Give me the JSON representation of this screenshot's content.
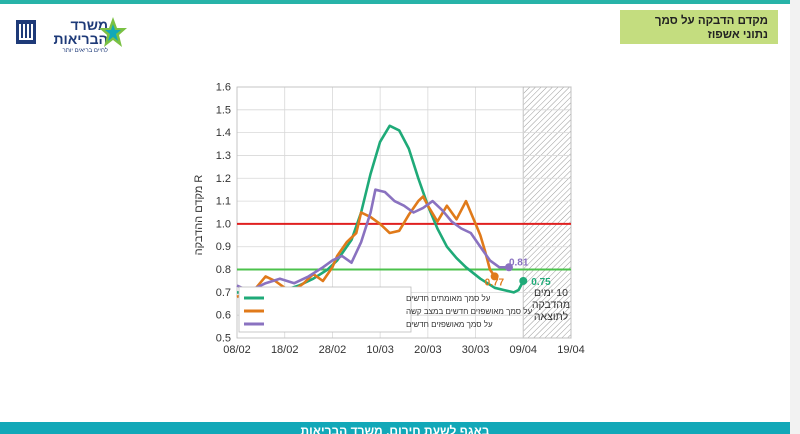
{
  "header": {
    "title": "מקדם הדבקה על סמך נתוני אשפוז",
    "logo_name": "משרד הבריאות",
    "logo_slogan": "לחיים בריאים יותר"
  },
  "footer": {
    "text": "באגף לשעת חירום, משרד הבריאות"
  },
  "colors": {
    "accent": "#12a8b8",
    "title_bg": "#c4dd7f",
    "confirmed": "#1faa78",
    "severe": "#e07a1a",
    "hospitalized": "#8a72c0",
    "threshold_red": "#e02020",
    "threshold_green": "#4cc24c"
  },
  "chart_data": {
    "type": "line",
    "ylabel": "מקדם ההדבקה R",
    "ylim": [
      0.5,
      1.6
    ],
    "yticks": [
      "0.5",
      "0.6",
      "0.7",
      "0.8",
      "0.9",
      "1.0",
      "1.1",
      "1.2",
      "1.3",
      "1.4",
      "1.5",
      "1.6"
    ],
    "xlim": [
      "2021-02-08",
      "2021-04-19"
    ],
    "xticks": [
      {
        "date": "2021-02-08",
        "label": "08/02"
      },
      {
        "date": "2021-02-18",
        "label": "18/02"
      },
      {
        "date": "2021-02-28",
        "label": "28/02"
      },
      {
        "date": "2021-03-10",
        "label": "10/03"
      },
      {
        "date": "2021-03-20",
        "label": "20/03"
      },
      {
        "date": "2021-03-30",
        "label": "30/03"
      },
      {
        "date": "2021-04-09",
        "label": "09/04"
      },
      {
        "date": "2021-04-19",
        "label": "19/04"
      }
    ],
    "grid": true,
    "hatched_region": {
      "from": "2021-04-09",
      "to": "2021-04-19"
    },
    "hlines": [
      {
        "y": 1.0,
        "color": "#e02020"
      },
      {
        "y": 0.8,
        "color": "#4cc24c"
      }
    ],
    "legend_position": "bottom-left",
    "series": [
      {
        "name": "על סמך מאומתים חדשים",
        "color": "#1faa78",
        "end_label": "0.75",
        "points": [
          [
            "2021-02-08",
            0.7
          ],
          [
            "2021-02-11",
            0.7
          ],
          [
            "2021-02-14",
            0.71
          ],
          [
            "2021-02-18",
            0.71
          ],
          [
            "2021-02-21",
            0.73
          ],
          [
            "2021-02-24",
            0.76
          ],
          [
            "2021-02-27",
            0.8
          ],
          [
            "2021-03-01",
            0.84
          ],
          [
            "2021-03-04",
            0.93
          ],
          [
            "2021-03-06",
            1.05
          ],
          [
            "2021-03-08",
            1.22
          ],
          [
            "2021-03-10",
            1.36
          ],
          [
            "2021-03-12",
            1.43
          ],
          [
            "2021-03-14",
            1.41
          ],
          [
            "2021-03-16",
            1.33
          ],
          [
            "2021-03-18",
            1.2
          ],
          [
            "2021-03-20",
            1.08
          ],
          [
            "2021-03-22",
            0.98
          ],
          [
            "2021-03-24",
            0.9
          ],
          [
            "2021-03-26",
            0.85
          ],
          [
            "2021-03-28",
            0.81
          ],
          [
            "2021-03-31",
            0.76
          ],
          [
            "2021-04-03",
            0.72
          ],
          [
            "2021-04-05",
            0.71
          ],
          [
            "2021-04-07",
            0.7
          ],
          [
            "2021-04-08",
            0.71
          ],
          [
            "2021-04-09",
            0.75
          ]
        ]
      },
      {
        "name": "על סמך מאושפזים חדשים במצב קשה",
        "color": "#e07a1a",
        "end_label": "0.77",
        "points": [
          [
            "2021-02-08",
            0.68
          ],
          [
            "2021-02-10",
            0.7
          ],
          [
            "2021-02-12",
            0.72
          ],
          [
            "2021-02-14",
            0.77
          ],
          [
            "2021-02-16",
            0.75
          ],
          [
            "2021-02-18",
            0.72
          ],
          [
            "2021-02-20",
            0.71
          ],
          [
            "2021-02-22",
            0.74
          ],
          [
            "2021-02-24",
            0.78
          ],
          [
            "2021-02-26",
            0.75
          ],
          [
            "2021-02-28",
            0.81
          ],
          [
            "2021-03-01",
            0.86
          ],
          [
            "2021-03-03",
            0.92
          ],
          [
            "2021-03-05",
            0.96
          ],
          [
            "2021-03-06",
            1.05
          ],
          [
            "2021-03-08",
            1.03
          ],
          [
            "2021-03-10",
            1.0
          ],
          [
            "2021-03-12",
            0.96
          ],
          [
            "2021-03-14",
            0.97
          ],
          [
            "2021-03-16",
            1.04
          ],
          [
            "2021-03-18",
            1.1
          ],
          [
            "2021-03-19",
            1.12
          ],
          [
            "2021-03-20",
            1.08
          ],
          [
            "2021-03-22",
            1.01
          ],
          [
            "2021-03-24",
            1.08
          ],
          [
            "2021-03-26",
            1.02
          ],
          [
            "2021-03-28",
            1.1
          ],
          [
            "2021-03-30",
            1.0
          ],
          [
            "2021-03-31",
            0.95
          ],
          [
            "2021-04-01",
            0.88
          ],
          [
            "2021-04-02",
            0.8
          ],
          [
            "2021-04-03",
            0.77
          ]
        ]
      },
      {
        "name": "על סמך מאושפזים חדשים",
        "color": "#8a72c0",
        "end_label": "0.81",
        "points": [
          [
            "2021-02-08",
            0.73
          ],
          [
            "2021-02-10",
            0.71
          ],
          [
            "2021-02-12",
            0.72
          ],
          [
            "2021-02-14",
            0.74
          ],
          [
            "2021-02-17",
            0.76
          ],
          [
            "2021-02-20",
            0.74
          ],
          [
            "2021-02-23",
            0.77
          ],
          [
            "2021-02-26",
            0.81
          ],
          [
            "2021-02-28",
            0.84
          ],
          [
            "2021-03-02",
            0.86
          ],
          [
            "2021-03-04",
            0.83
          ],
          [
            "2021-03-06",
            0.92
          ],
          [
            "2021-03-08",
            1.05
          ],
          [
            "2021-03-09",
            1.15
          ],
          [
            "2021-03-11",
            1.14
          ],
          [
            "2021-03-13",
            1.1
          ],
          [
            "2021-03-15",
            1.08
          ],
          [
            "2021-03-17",
            1.05
          ],
          [
            "2021-03-19",
            1.07
          ],
          [
            "2021-03-21",
            1.1
          ],
          [
            "2021-03-23",
            1.06
          ],
          [
            "2021-03-25",
            1.01
          ],
          [
            "2021-03-27",
            0.98
          ],
          [
            "2021-03-29",
            0.96
          ],
          [
            "2021-03-31",
            0.9
          ],
          [
            "2021-04-02",
            0.84
          ],
          [
            "2021-04-04",
            0.81
          ],
          [
            "2021-04-06",
            0.81
          ]
        ]
      }
    ],
    "annotation": {
      "lines": [
        "10 ימים",
        "מהדבקה",
        "לתוצאה"
      ]
    }
  }
}
